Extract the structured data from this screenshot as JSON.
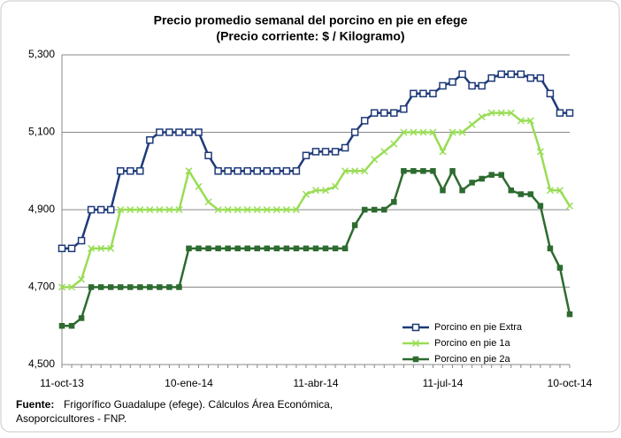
{
  "chart_data": {
    "type": "line",
    "title": "Precio promedio semanal del porcino en pie en efege",
    "subtitle": "(Precio corriente: $ / Kilogramo)",
    "categories": [
      "11-oct-13",
      null,
      null,
      null,
      null,
      null,
      null,
      null,
      null,
      null,
      null,
      null,
      null,
      "10-ene-14",
      null,
      null,
      null,
      null,
      null,
      null,
      null,
      null,
      null,
      null,
      null,
      null,
      "11-abr-14",
      null,
      null,
      null,
      null,
      null,
      null,
      null,
      null,
      null,
      null,
      null,
      null,
      "11-jul-14",
      null,
      null,
      null,
      null,
      null,
      null,
      null,
      null,
      null,
      null,
      null,
      null,
      "10-oct-14"
    ],
    "ylim": [
      4500,
      5300
    ],
    "yticks": [
      {
        "value": 4500,
        "label": "4,500"
      },
      {
        "value": 4700,
        "label": "4,700"
      },
      {
        "value": 4900,
        "label": "4,900"
      },
      {
        "value": 5100,
        "label": "5,100"
      },
      {
        "value": 5300,
        "label": "5,300"
      }
    ],
    "grid": true,
    "legend": "lower-right",
    "series": [
      {
        "name": "Porcino en pie Extra",
        "color": "#1f3a7a",
        "marker": "square-open",
        "values": [
          4800,
          4800,
          4820,
          4900,
          4900,
          4900,
          5000,
          5000,
          5000,
          5080,
          5100,
          5100,
          5100,
          5100,
          5100,
          5040,
          5000,
          5000,
          5000,
          5000,
          5000,
          5000,
          5000,
          5000,
          5000,
          5040,
          5050,
          5050,
          5050,
          5060,
          5100,
          5130,
          5150,
          5150,
          5150,
          5160,
          5200,
          5200,
          5200,
          5220,
          5230,
          5250,
          5220,
          5220,
          5240,
          5250,
          5250,
          5250,
          5240,
          5240,
          5200,
          5150,
          5150
        ]
      },
      {
        "name": "Porcino en pie 1a",
        "color": "#99dd55",
        "marker": "x",
        "values": [
          4700,
          4700,
          4720,
          4800,
          4800,
          4800,
          4900,
          4900,
          4900,
          4900,
          4900,
          4900,
          4900,
          5000,
          4960,
          4920,
          4900,
          4900,
          4900,
          4900,
          4900,
          4900,
          4900,
          4900,
          4900,
          4940,
          4950,
          4950,
          4960,
          5000,
          5000,
          5000,
          5030,
          5050,
          5070,
          5100,
          5100,
          5100,
          5100,
          5050,
          5100,
          5100,
          5120,
          5140,
          5150,
          5150,
          5150,
          5130,
          5130,
          5050,
          4950,
          4950,
          4910
        ]
      },
      {
        "name": "Porcino en pie 2a",
        "color": "#2e6b30",
        "marker": "square",
        "values": [
          4600,
          4600,
          4620,
          4700,
          4700,
          4700,
          4700,
          4700,
          4700,
          4700,
          4700,
          4700,
          4700,
          4800,
          4800,
          4800,
          4800,
          4800,
          4800,
          4800,
          4800,
          4800,
          4800,
          4800,
          4800,
          4800,
          4800,
          4800,
          4800,
          4800,
          4860,
          4900,
          4900,
          4900,
          4920,
          5000,
          5000,
          5000,
          5000,
          4950,
          5000,
          4950,
          4970,
          4980,
          4990,
          4990,
          4950,
          4940,
          4940,
          4910,
          4800,
          4750,
          4630
        ]
      }
    ]
  },
  "source": {
    "label": "Fuente:",
    "lines": [
      "Frigorífico Guadalupe (efege). Cálculos Área Económica,",
      "Asoporcicultores  - FNP."
    ]
  }
}
